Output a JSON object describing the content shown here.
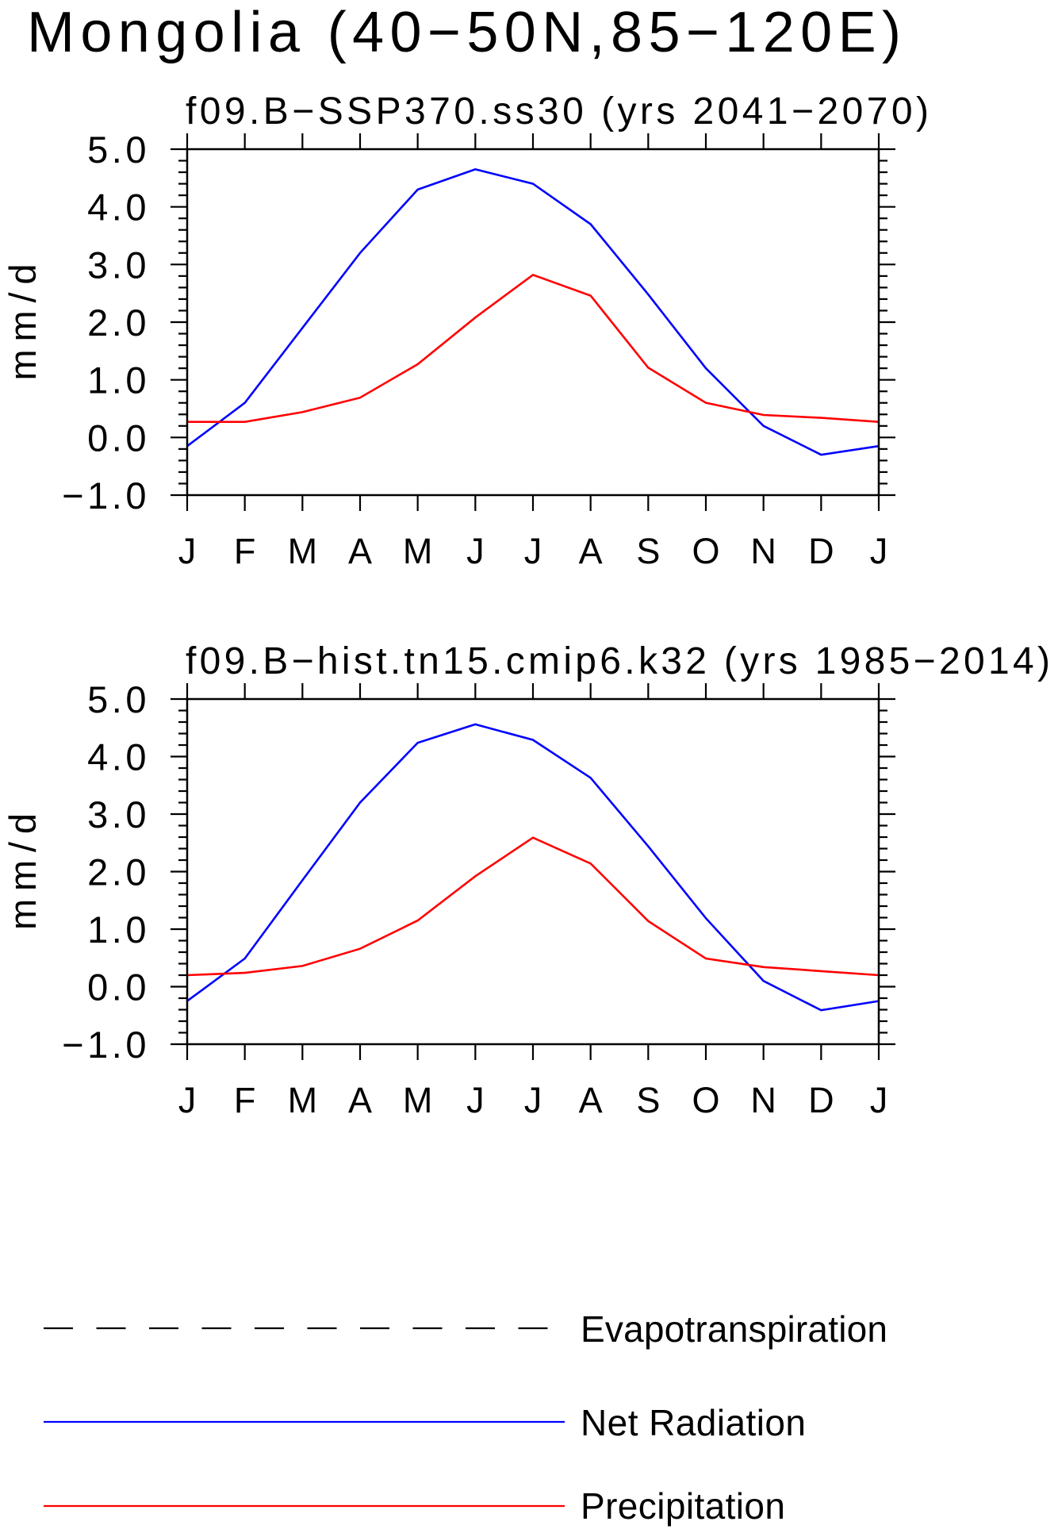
{
  "title": "Mongolia (40−50N,85−120E)",
  "chart_data": [
    {
      "type": "line",
      "title": "f09.B−SSP370.ss30 (yrs 2041−2070)",
      "ylabel": "mm/d",
      "categories": [
        "J",
        "F",
        "M",
        "A",
        "M",
        "J",
        "J",
        "A",
        "S",
        "O",
        "N",
        "D",
        "J"
      ],
      "ylim": [
        -1,
        5
      ],
      "yticks": [
        5,
        4,
        3,
        2,
        1,
        0,
        -1
      ],
      "ytick_labels": [
        "5.0",
        "4.0",
        "3.0",
        "2.0",
        "1.0",
        "0.0",
        "−1.0"
      ],
      "y_minor_step": 0.2,
      "grid": false,
      "series": [
        {
          "name": "Net Radiation",
          "color": "#0000ff",
          "values": [
            -0.15,
            0.6,
            1.9,
            3.2,
            4.3,
            4.65,
            4.4,
            3.7,
            2.48,
            1.2,
            0.2,
            -0.3,
            -0.15
          ]
        },
        {
          "name": "Precipitation",
          "color": "#ff0000",
          "values": [
            0.27,
            0.27,
            0.44,
            0.69,
            1.27,
            2.08,
            2.82,
            2.46,
            1.21,
            0.6,
            0.39,
            0.34,
            0.27
          ]
        }
      ]
    },
    {
      "type": "line",
      "title": "f09.B−hist.tn15.cmip6.k32 (yrs 1985−2014)",
      "ylabel": "mm/d",
      "categories": [
        "J",
        "F",
        "M",
        "A",
        "M",
        "J",
        "J",
        "A",
        "S",
        "O",
        "N",
        "D",
        "J"
      ],
      "ylim": [
        -1,
        5
      ],
      "yticks": [
        5,
        4,
        3,
        2,
        1,
        0,
        -1
      ],
      "ytick_labels": [
        "5.0",
        "4.0",
        "3.0",
        "2.0",
        "1.0",
        "0.0",
        "−1.0"
      ],
      "y_minor_step": 0.2,
      "grid": false,
      "series": [
        {
          "name": "Net Radiation",
          "color": "#0000ff",
          "values": [
            -0.25,
            0.49,
            1.85,
            3.2,
            4.24,
            4.56,
            4.29,
            3.63,
            2.44,
            1.19,
            0.1,
            -0.41,
            -0.25
          ]
        },
        {
          "name": "Precipitation",
          "color": "#ff0000",
          "values": [
            0.2,
            0.24,
            0.36,
            0.66,
            1.15,
            1.92,
            2.59,
            2.14,
            1.14,
            0.49,
            0.34,
            0.27,
            0.2
          ]
        }
      ]
    }
  ],
  "legend": {
    "placement": "bottom",
    "items": [
      {
        "label": "Evapotranspiration",
        "color": "#000000",
        "style": "dashed"
      },
      {
        "label": "Net Radiation",
        "color": "#0000ff",
        "style": "solid"
      },
      {
        "label": "Precipitation",
        "color": "#ff0000",
        "style": "solid"
      }
    ]
  }
}
